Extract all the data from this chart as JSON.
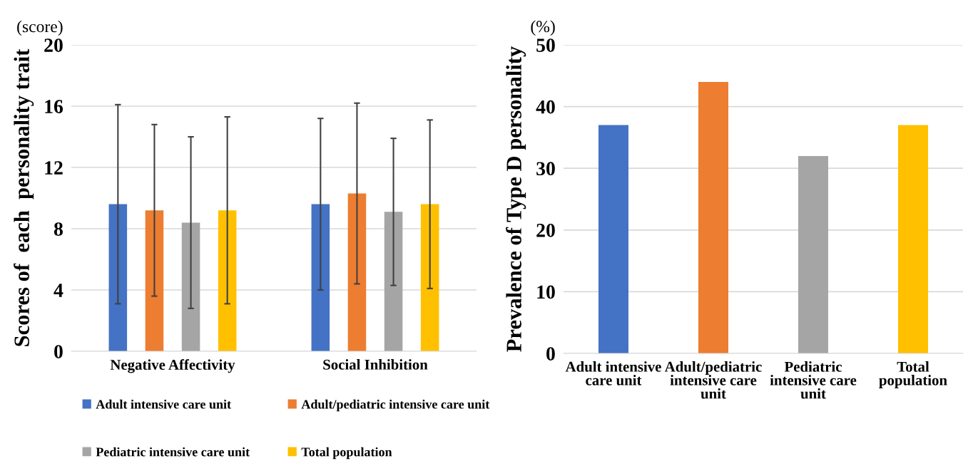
{
  "chart_data": [
    {
      "type": "bar",
      "ylabel": "Scores of  each  personality trait",
      "annotations": [
        "(score)"
      ],
      "categories": [
        "Negative Affectivity",
        "Social Inhibition"
      ],
      "series": [
        {
          "name": "Adult intensive care unit",
          "color": "#4472c4",
          "values": [
            9.6,
            9.6
          ],
          "errors": [
            6.5,
            5.6
          ]
        },
        {
          "name": "Adult/pediatric intensive care unit",
          "color": "#ed7d31",
          "values": [
            9.2,
            10.3
          ],
          "errors": [
            5.6,
            5.9
          ]
        },
        {
          "name": "Pediatric intensive care unit",
          "color": "#a5a5a5",
          "values": [
            8.4,
            9.1
          ],
          "errors": [
            5.6,
            4.8
          ]
        },
        {
          "name": "Total population",
          "color": "#ffc000",
          "values": [
            9.2,
            9.6
          ],
          "errors": [
            6.1,
            5.5
          ]
        }
      ],
      "ylim": [
        0,
        20
      ],
      "yticks": [
        0,
        4,
        8,
        12,
        16,
        20
      ],
      "grid": "y",
      "legend": "bottom"
    },
    {
      "type": "bar",
      "ylabel": "Prevalence of Type D personality",
      "annotations": [
        "(%)"
      ],
      "categories": [
        "Adult intensive care unit",
        "Adult/pediatric intensive care unit",
        "Pediatric intensive care unit",
        "Total population"
      ],
      "values": [
        37,
        44,
        32,
        37
      ],
      "colors": [
        "#4472c4",
        "#ed7d31",
        "#a5a5a5",
        "#ffc000"
      ],
      "ylim": [
        0,
        50
      ],
      "yticks": [
        0,
        10,
        20,
        30,
        40,
        50
      ],
      "grid": "y"
    }
  ]
}
